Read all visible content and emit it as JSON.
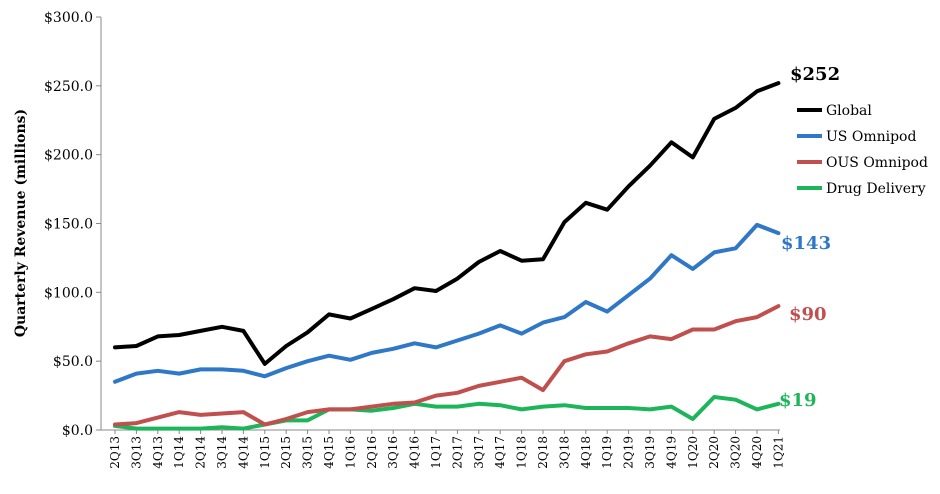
{
  "chart_data": {
    "type": "line",
    "title": "",
    "xlabel": "",
    "ylabel": "Quarterly Revenue (millions)",
    "ylim": [
      0,
      300
    ],
    "yticks": [
      "$0.0",
      "$50.0",
      "$100.0",
      "$150.0",
      "$200.0",
      "$250.0",
      "$300.0"
    ],
    "ytick_values": [
      0,
      50,
      100,
      150,
      200,
      250,
      300
    ],
    "grid": false,
    "legend_position": "right",
    "categories": [
      "2Q13",
      "3Q13",
      "4Q13",
      "1Q14",
      "2Q14",
      "3Q14",
      "4Q14",
      "1Q15",
      "2Q15",
      "3Q15",
      "4Q15",
      "1Q16",
      "2Q16",
      "3Q16",
      "4Q16",
      "1Q17",
      "2Q17",
      "3Q17",
      "4Q17",
      "1Q18",
      "2Q18",
      "3Q18",
      "4Q18",
      "1Q19",
      "2Q19",
      "3Q19",
      "4Q19",
      "1Q20",
      "2Q20",
      "3Q20",
      "4Q20",
      "1Q21"
    ],
    "series": [
      {
        "name": "Global",
        "color": "#000000",
        "end_label": "$252",
        "values": [
          60,
          61,
          68,
          69,
          72,
          75,
          72,
          48,
          61,
          71,
          84,
          81,
          88,
          95,
          103,
          101,
          110,
          122,
          130,
          123,
          124,
          151,
          165,
          160,
          177,
          192,
          209,
          198,
          226,
          234,
          246,
          252
        ]
      },
      {
        "name": "US Omnipod",
        "color": "#2F77C7",
        "end_label": "$143",
        "values": [
          35,
          41,
          43,
          41,
          44,
          44,
          43,
          39,
          45,
          50,
          54,
          51,
          56,
          59,
          63,
          60,
          65,
          70,
          76,
          70,
          78,
          82,
          93,
          86,
          98,
          110,
          127,
          117,
          129,
          132,
          149,
          143
        ]
      },
      {
        "name": "OUS Omnipod",
        "color": "#C0504D",
        "end_label": "$90",
        "values": [
          4,
          5,
          9,
          13,
          11,
          12,
          13,
          4,
          8,
          13,
          15,
          15,
          17,
          19,
          20,
          25,
          27,
          32,
          35,
          38,
          29,
          50,
          55,
          57,
          63,
          68,
          66,
          73,
          73,
          79,
          82,
          90
        ]
      },
      {
        "name": "Drug Delivery",
        "color": "#1DB55A",
        "end_label": "$19",
        "values": [
          3,
          1,
          1,
          1,
          1,
          2,
          1,
          4,
          7,
          7,
          15,
          15,
          14,
          16,
          19,
          17,
          17,
          19,
          18,
          15,
          17,
          18,
          16,
          16,
          16,
          15,
          17,
          8,
          24,
          22,
          15,
          19
        ]
      }
    ]
  }
}
